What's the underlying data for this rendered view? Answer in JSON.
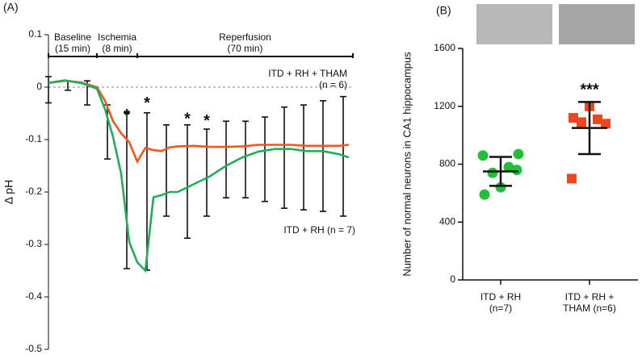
{
  "chart_data": [
    {
      "type": "line",
      "label": "(A)",
      "y_label": "Δ pH",
      "x": [
        0,
        5,
        10,
        15,
        17.5,
        20,
        22.5,
        25,
        27.5,
        30,
        32.5,
        35,
        37.5,
        40,
        45,
        50,
        55,
        60,
        65,
        70,
        75,
        80,
        85,
        90,
        93
      ],
      "xlim": [
        0,
        94.25
      ],
      "ylim": [
        -0.5,
        0.1
      ],
      "yticks": [
        0.1,
        0,
        -0.1,
        -0.2,
        -0.3,
        -0.4,
        -0.5
      ],
      "series": [
        {
          "name": "ITD + RH + THAM (n = 6)",
          "color": "#f0561e",
          "values": [
            0.008,
            0.012,
            0.009,
            0,
            -0.026,
            -0.065,
            -0.088,
            -0.105,
            -0.142,
            -0.116,
            -0.12,
            -0.122,
            -0.115,
            -0.113,
            -0.112,
            -0.114,
            -0.114,
            -0.113,
            -0.11,
            -0.11,
            -0.11,
            -0.112,
            -0.112,
            -0.112,
            -0.11
          ]
        },
        {
          "name": "ITD + RH (n = 7)",
          "color": "#22ad5c",
          "values": [
            0.008,
            0.013,
            0.008,
            -0.003,
            -0.042,
            -0.095,
            -0.165,
            -0.295,
            -0.334,
            -0.35,
            -0.21,
            -0.206,
            -0.2,
            -0.2,
            -0.185,
            -0.17,
            -0.15,
            -0.134,
            -0.123,
            -0.118,
            -0.118,
            -0.122,
            -0.122,
            -0.128,
            -0.134
          ]
        }
      ],
      "error_bars": {
        "x": [
          0,
          6,
          12,
          18.25,
          24.25,
          30.5,
          36.5,
          43,
          49,
          55,
          61,
          67,
          73,
          79,
          85,
          91.25
        ],
        "high": [
          0.02,
          0.012,
          0.012,
          -0.034,
          -0.049,
          -0.049,
          -0.072,
          -0.072,
          -0.08,
          -0.065,
          -0.065,
          -0.057,
          -0.038,
          -0.034,
          -0.026,
          -0.018
        ],
        "low": [
          -0.03,
          -0.006,
          -0.034,
          -0.137,
          -0.346,
          -0.349,
          -0.246,
          -0.288,
          -0.246,
          -0.211,
          -0.211,
          -0.218,
          -0.231,
          -0.234,
          -0.237,
          -0.246
        ]
      },
      "annotations": [
        {
          "text": "*",
          "x": 24.25,
          "y": -0.055
        },
        {
          "text": "*",
          "x": 30.5,
          "y": -0.032
        },
        {
          "text": "*",
          "x": 43,
          "y": -0.062
        },
        {
          "text": "*",
          "x": 49,
          "y": -0.066
        }
      ],
      "periods": [
        {
          "label": "Baseline",
          "duration": "(15 min)",
          "start": 0,
          "end": 15
        },
        {
          "label": "Ischemia",
          "duration": "(8 min)",
          "start": 15,
          "end": 27.5
        },
        {
          "label": "Reperfusion",
          "duration": "(70 min)",
          "start": 27.5,
          "end": 94.25
        }
      ]
    },
    {
      "type": "dot",
      "label": "(B)",
      "y_label": "Number of normal neurons in CA1 hippocampus",
      "ylim": [
        0,
        1600
      ],
      "yticks": [
        0,
        400,
        800,
        1200,
        1600
      ],
      "groups": [
        {
          "category": "ITD + RH (n=7)",
          "color": "#22c03a",
          "marker": "circle",
          "values": [
            590,
            640,
            760,
            740,
            780,
            860,
            870
          ],
          "mean": 750,
          "error": 100
        },
        {
          "category": "ITD + RH + THAM (n=6)",
          "color": "#f0461e",
          "marker": "square",
          "values": [
            1120,
            1200,
            1080,
            1090,
            1110,
            700
          ],
          "mean": 1050,
          "error": 180,
          "annotation": "***"
        }
      ]
    }
  ]
}
